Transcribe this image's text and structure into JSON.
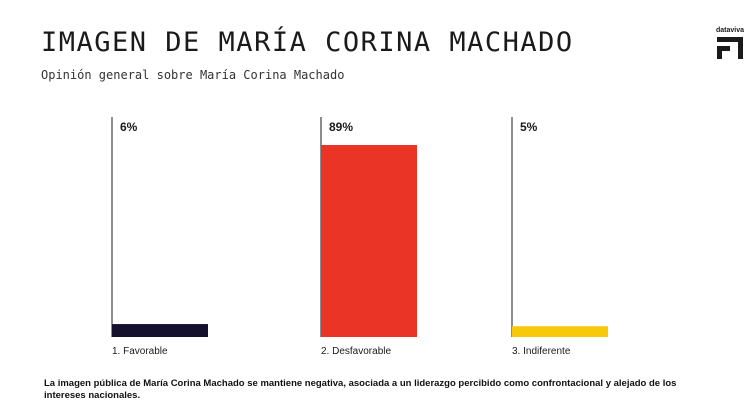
{
  "header": {
    "title": "IMAGEN DE MARÍA CORINA MACHADO",
    "subtitle": "Opinión general sobre María Corina Machado",
    "brand": "dataviva"
  },
  "chart_data": {
    "type": "bar",
    "categories": [
      "1. Favorable",
      "2. Desfavorable",
      "3. Indiferente"
    ],
    "values": [
      6,
      89,
      5
    ],
    "data_labels": [
      "6%",
      "89%",
      "5%"
    ],
    "colors": [
      "#15102e",
      "#ea3526",
      "#f8c80a"
    ],
    "ylim": [
      0,
      100
    ],
    "grid": false,
    "legend": "none"
  },
  "footnote": "La imagen pública de María Corina Machado se mantiene negativa, asociada a un liderazgo percibido como confrontacional y alejado de los intereses nacionales."
}
